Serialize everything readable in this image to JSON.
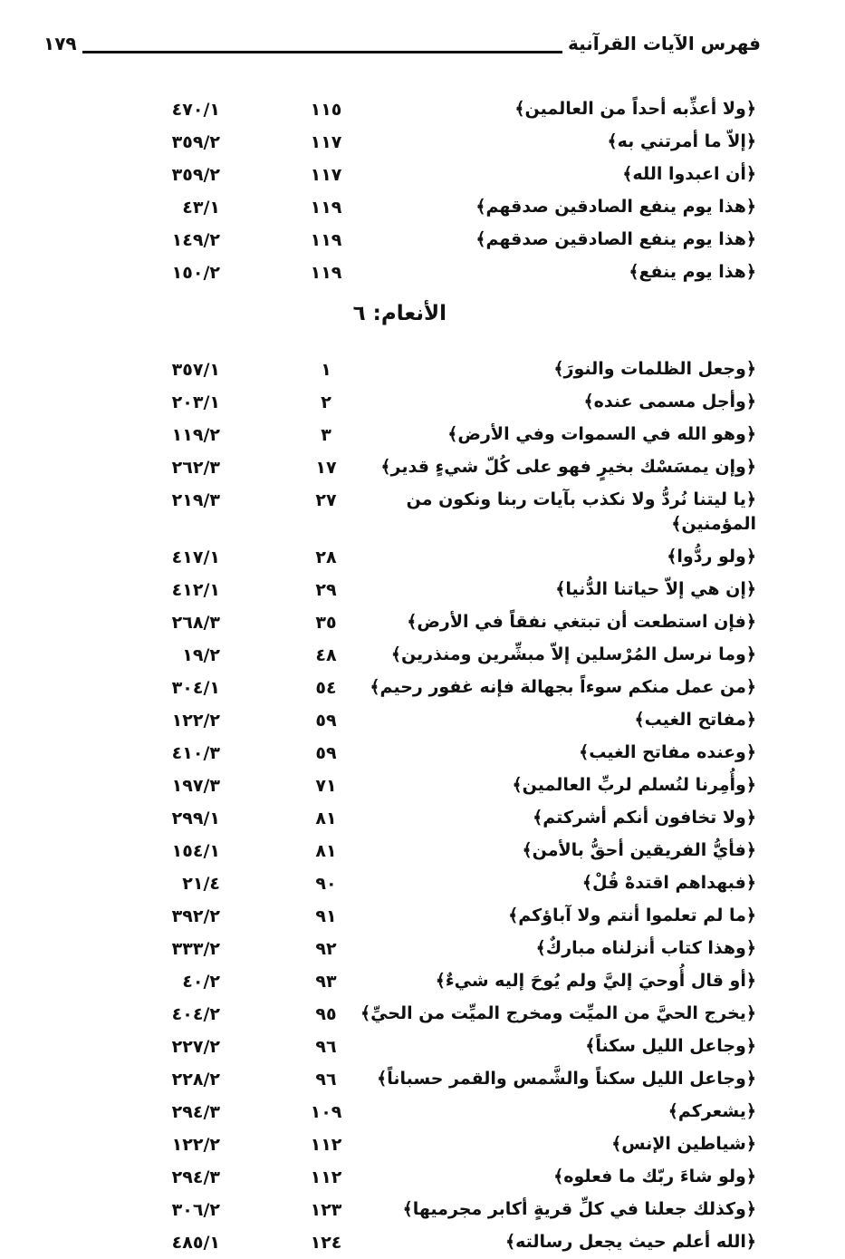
{
  "header": {
    "title": "فهرس الآيات القرآنية",
    "page_number": "١٧٩"
  },
  "section1": [
    {
      "verse": "﴿ولا أعذِّبه أحداً من العالمين﴾",
      "ayah": "١١٥",
      "ref": "٤٧٠/١"
    },
    {
      "verse": "﴿إلاّ ما أمرتني به﴾",
      "ayah": "١١٧",
      "ref": "٣٥٩/٢"
    },
    {
      "verse": "﴿أن اعبدوا الله﴾",
      "ayah": "١١٧",
      "ref": "٣٥٩/٢"
    },
    {
      "verse": "﴿هذا يوم ينفع الصادقين صدقهم﴾",
      "ayah": "١١٩",
      "ref": "٤٣/١"
    },
    {
      "verse": "﴿هذا يوم ينفع الصادقين صدقهم﴾",
      "ayah": "١١٩",
      "ref": "١٤٩/٢"
    },
    {
      "verse": "﴿هذا يوم ينفع﴾",
      "ayah": "١١٩",
      "ref": "١٥٠/٢"
    }
  ],
  "surah_heading": "الأنعام: ٦",
  "section2": [
    {
      "verse": "﴿وجعل الظلمات والنورَ﴾",
      "ayah": "١",
      "ref": "٣٥٧/١"
    },
    {
      "verse": "﴿وأجل مسمى عنده﴾",
      "ayah": "٢",
      "ref": "٢٠٣/١"
    },
    {
      "verse": "﴿وهو الله في السموات وفي الأرض﴾",
      "ayah": "٣",
      "ref": "١١٩/٢"
    },
    {
      "verse": "﴿وإن يمسَسْك بخيرٍ فهو على كُلّ شيءٍ قدير﴾",
      "ayah": "١٧",
      "ref": "٢٦٢/٣"
    },
    {
      "verse": "﴿يا ليتنا نُردُّ ولا نكذب بآيات ربنا ونكون من المؤمنين﴾",
      "ayah": "٢٧",
      "ref": "٢١٩/٣"
    },
    {
      "verse": "﴿ولو ردُّوا﴾",
      "ayah": "٢٨",
      "ref": "٤١٧/١"
    },
    {
      "verse": "﴿إن هي إلاّ حياتنا الدُّنيا﴾",
      "ayah": "٢٩",
      "ref": "٤١٢/١"
    },
    {
      "verse": "﴿فإن استطعت أن تبتغي نفقاً في الأرض﴾",
      "ayah": "٣٥",
      "ref": "٢٦٨/٣"
    },
    {
      "verse": "﴿وما نرسل المُرْسلين إلاّ مبشِّرين ومنذرين﴾",
      "ayah": "٤٨",
      "ref": "١٩/٢"
    },
    {
      "verse": "﴿من عمل منكم سوءاً بجهالة فإنه غفور رحيم﴾",
      "ayah": "٥٤",
      "ref": "٣٠٤/١"
    },
    {
      "verse": "﴿مفاتح الغيب﴾",
      "ayah": "٥٩",
      "ref": "١٢٢/٢"
    },
    {
      "verse": "﴿وعنده مفاتح الغيب﴾",
      "ayah": "٥٩",
      "ref": "٤١٠/٣"
    },
    {
      "verse": "﴿وأُمِرنا لنُسلم لربِّ العالمين﴾",
      "ayah": "٧١",
      "ref": "١٩٧/٣"
    },
    {
      "verse": "﴿ولا تخافون أنكم أشركتم﴾",
      "ayah": "٨١",
      "ref": "٢٩٩/١"
    },
    {
      "verse": "﴿فأيُّ الفريقين أحقُّ بالأمن﴾",
      "ayah": "٨١",
      "ref": "١٥٤/١"
    },
    {
      "verse": "﴿فبهداهم اقتدهْ قُلْ﴾",
      "ayah": "٩٠",
      "ref": "٢١/٤"
    },
    {
      "verse": "﴿ما لم تعلموا أنتم ولا آباؤكم﴾",
      "ayah": "٩١",
      "ref": "٣٩٢/٢"
    },
    {
      "verse": "﴿وهذا كتاب أنزلناه مباركٌ﴾",
      "ayah": "٩٢",
      "ref": "٣٣٣/٢"
    },
    {
      "verse": "﴿أو قال أُوحيَ إليَّ ولم يُوحَ إليه شيءٌ﴾",
      "ayah": "٩٣",
      "ref": "٤٠/٢"
    },
    {
      "verse": "﴿يخرج الحيَّ من الميِّت ومخرج الميِّت من الحيِّ﴾",
      "ayah": "٩٥",
      "ref": "٤٠٤/٢"
    },
    {
      "verse": "﴿وجاعل الليل سكناً﴾",
      "ayah": "٩٦",
      "ref": "٢٢٧/٢"
    },
    {
      "verse": "﴿وجاعل الليل سكناً والشَّمس والقمر حسباناً﴾",
      "ayah": "٩٦",
      "ref": "٢٢٨/٢"
    },
    {
      "verse": "﴿يشعركم﴾",
      "ayah": "١٠٩",
      "ref": "٢٩٤/٣"
    },
    {
      "verse": "﴿شياطين الإنس﴾",
      "ayah": "١١٢",
      "ref": "١٢٢/٢"
    },
    {
      "verse": "﴿ولو شاءَ ربّك ما فعلوه﴾",
      "ayah": "١١٢",
      "ref": "٢٩٤/٣"
    },
    {
      "verse": "﴿وكذلك جعلنا في كلِّ قريةٍ أكابر مجرميها﴾",
      "ayah": "١٢٣",
      "ref": "٣٠٦/٢"
    },
    {
      "verse": "﴿الله أعلم حيث يجعل رسالته﴾",
      "ayah": "١٢٤",
      "ref": "٤٨٥/١"
    }
  ]
}
